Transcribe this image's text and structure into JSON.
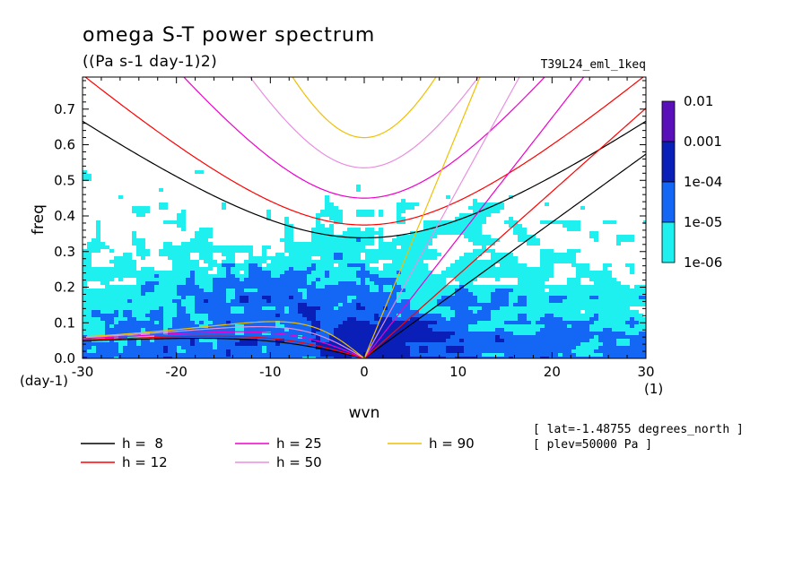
{
  "chart_data": {
    "type": "heatmap",
    "title": "omega S-T power spectrum",
    "subtitle": "((Pa s-1 day-1)2)",
    "run_label": "T39L24_eml_1keq",
    "xlabel": "wvn",
    "ylabel": "freq",
    "x_units": "(1)",
    "y_units": "(day-1)",
    "xlim": [
      -30,
      30
    ],
    "ylim": [
      0,
      0.79
    ],
    "x_ticks": [
      -30,
      -20,
      -10,
      0,
      10,
      20,
      30
    ],
    "x_tick_labels": [
      "-30",
      "-20",
      "-10",
      "0",
      "10",
      "20",
      "30"
    ],
    "y_ticks": [
      0,
      0.1,
      0.2,
      0.3,
      0.4,
      0.5,
      0.6,
      0.7
    ],
    "y_tick_labels": [
      "0.0",
      "0.1",
      "0.2",
      "0.3",
      "0.4",
      "0.5",
      "0.6",
      "0.7"
    ],
    "colorbar": {
      "levels": [
        "0.01",
        "0.001",
        "1e-04",
        "1e-05",
        "1e-06"
      ],
      "colors": [
        "#5a10b8",
        "#0a1fb8",
        "#1466f5",
        "#1ef0f0"
      ]
    },
    "info_lines": [
      "[ lat=-1.48755 degrees_north ]",
      "[ plev=50000 Pa ]"
    ],
    "dispersion_curves": [
      {
        "name": "h =  8",
        "h": 8,
        "color": "#000000"
      },
      {
        "name": "h = 12",
        "h": 12,
        "color": "#ff0000"
      },
      {
        "name": "h = 25",
        "h": 25,
        "color": "#ee00cc"
      },
      {
        "name": "h = 50",
        "h": 50,
        "color": "#e88ee0"
      },
      {
        "name": "h = 90",
        "h": 90,
        "color": "#f0c000"
      }
    ]
  }
}
